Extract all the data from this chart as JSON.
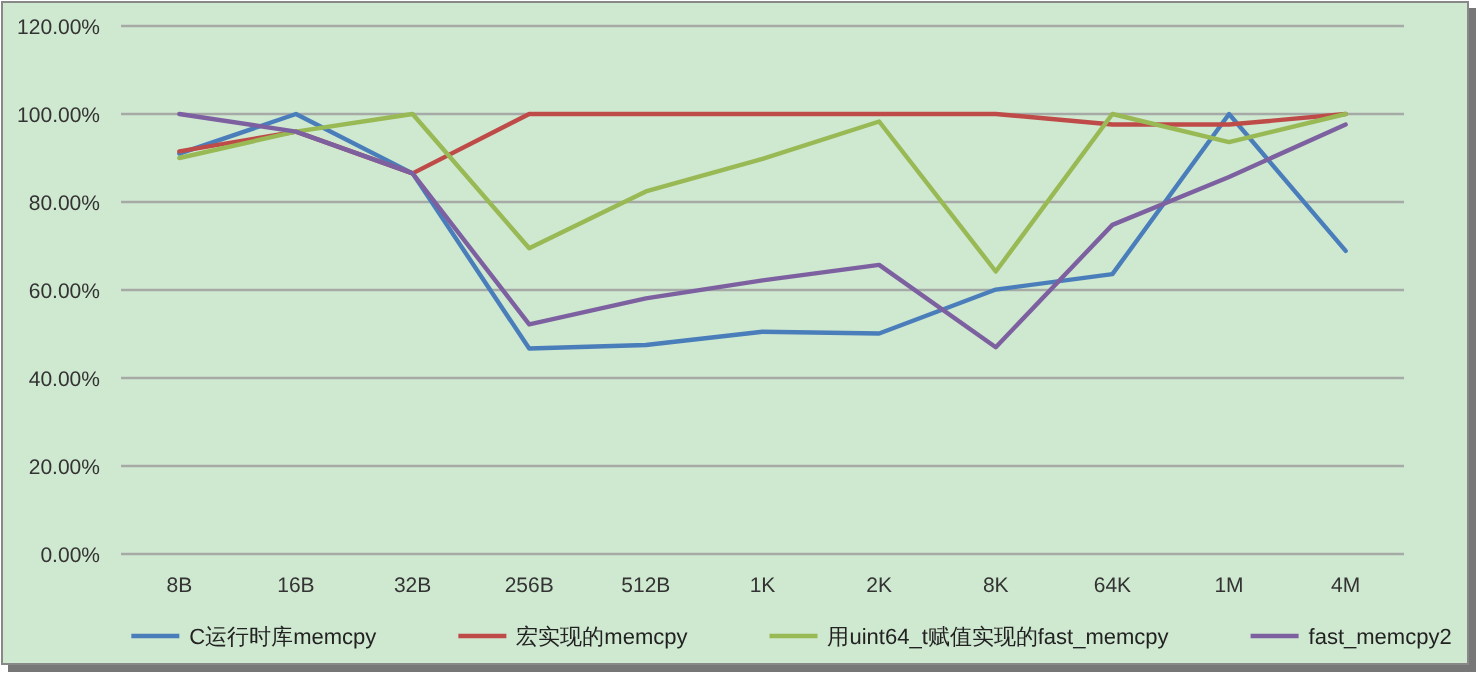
{
  "chart_data": {
    "type": "line",
    "categories": [
      "8B",
      "16B",
      "32B",
      "256B",
      "512B",
      "1K",
      "2K",
      "8K",
      "64K",
      "1M",
      "4M"
    ],
    "series": [
      {
        "name": "C运行时库memcpy",
        "color": "#4a7ebb",
        "values": [
          91,
          100,
          86.5,
          46.7,
          47.5,
          50.5,
          50.1,
          60.1,
          63.6,
          100,
          68.9
        ]
      },
      {
        "name": "宏实现的memcpy",
        "color": "#be4b48",
        "values": [
          91.5,
          96,
          86.5,
          100,
          100,
          100,
          100,
          100,
          97.6,
          97.6,
          100
        ]
      },
      {
        "name": "用uint64_t赋值实现的fast_memcpy",
        "color": "#98b954",
        "values": [
          90,
          96,
          100,
          69.5,
          82.4,
          89.8,
          98.3,
          64.2,
          100,
          93.6,
          100
        ]
      },
      {
        "name": "fast_memcpy2",
        "color": "#7d60a0",
        "values": [
          100,
          96,
          86.5,
          52.2,
          58.1,
          62.2,
          65.7,
          47,
          74.8,
          85.7,
          97.6
        ]
      }
    ],
    "ylim": [
      0,
      120
    ],
    "yticks": [
      {
        "value": 0,
        "label": "0.00%"
      },
      {
        "value": 20,
        "label": "20.00%"
      },
      {
        "value": 40,
        "label": "40.00%"
      },
      {
        "value": 60,
        "label": "60.00%"
      },
      {
        "value": 80,
        "label": "80.00%"
      },
      {
        "value": 100,
        "label": "100.00%"
      },
      {
        "value": 120,
        "label": "120.00%"
      }
    ],
    "grid": "y",
    "legend": "bottom",
    "marker": "none",
    "line_style": "solid"
  }
}
